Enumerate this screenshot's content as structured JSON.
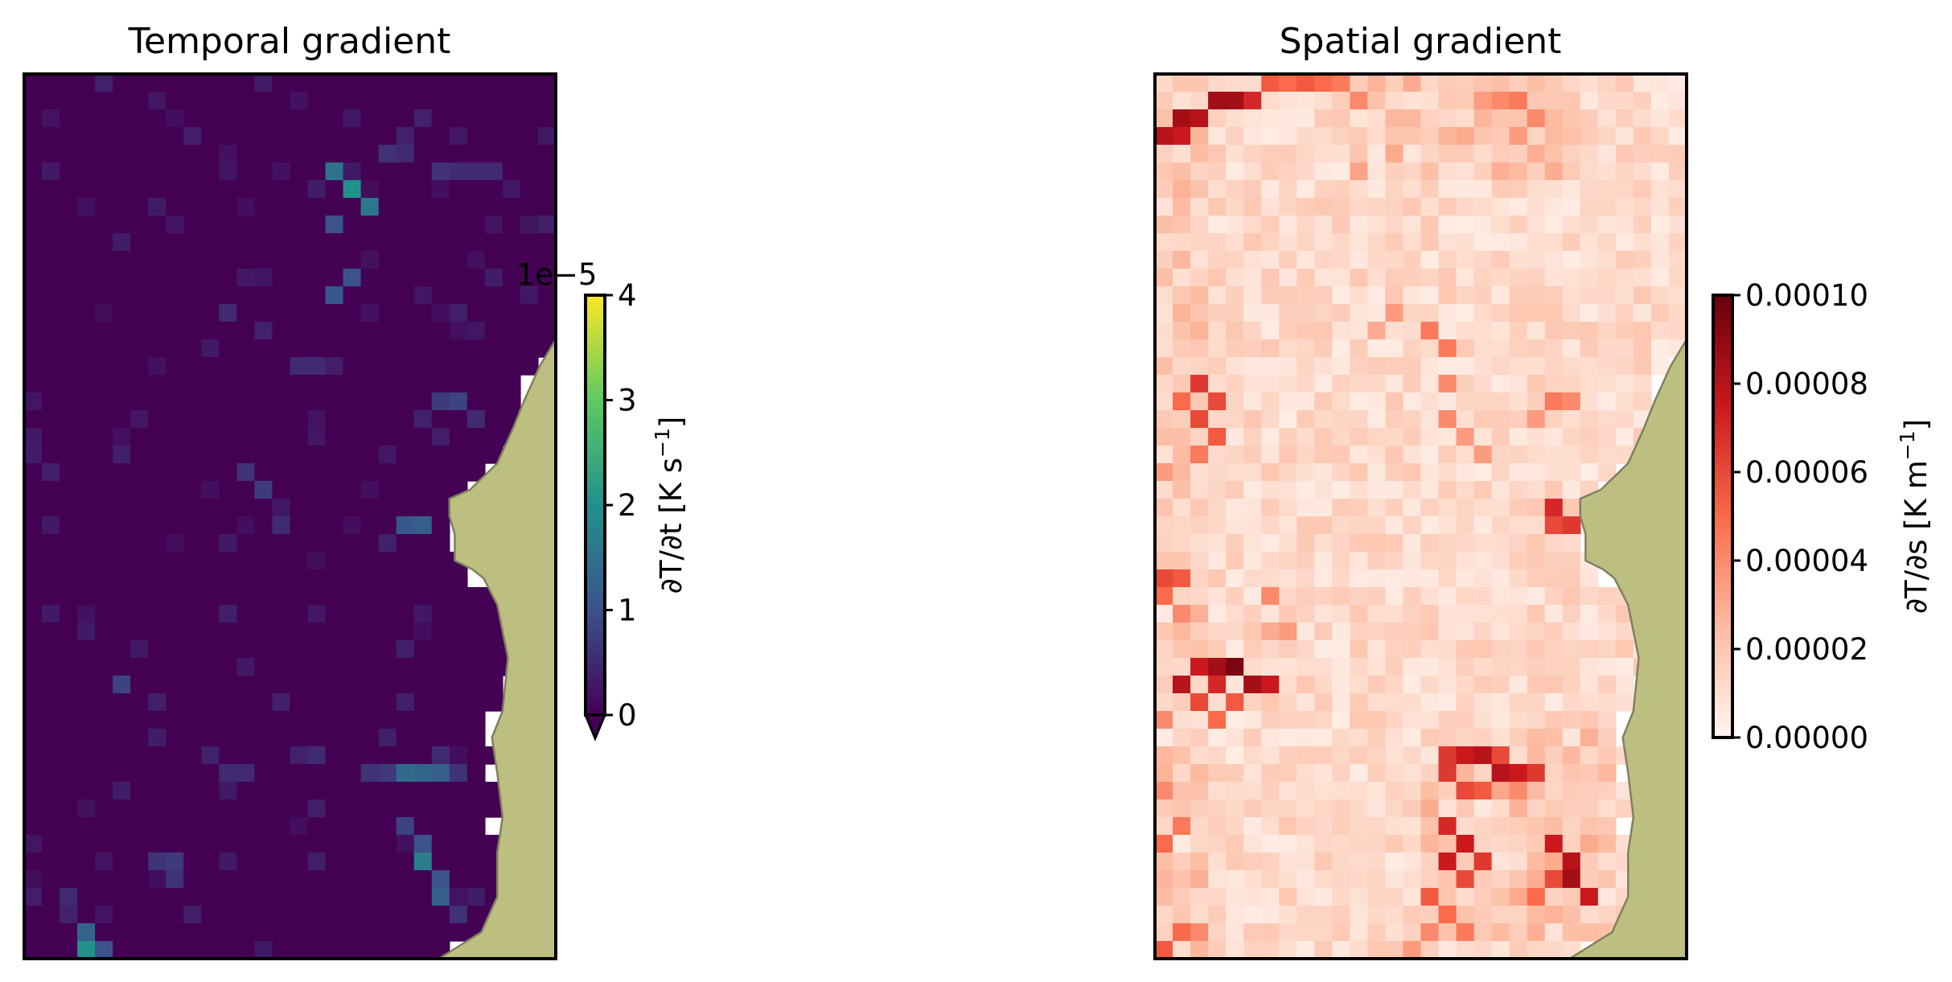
{
  "chart_data": [
    {
      "type": "heatmap",
      "title": "Temporal gradient",
      "colormap": "viridis",
      "colorbar": {
        "label": "∂T/∂t [K s⁻¹]",
        "label_parts": {
          "pre": "∂T/∂t [K s",
          "sup": "−1",
          "post": "]"
        },
        "ticks": [
          "0",
          "1",
          "2",
          "3",
          "4"
        ],
        "tick_values": [
          0,
          1,
          2,
          3,
          4
        ],
        "offset_text": "1e−5",
        "range": [
          0,
          4
        ],
        "extend": "min"
      },
      "grid": {
        "cols": 30,
        "rows": 50
      },
      "land_color": "#bdbf80",
      "land_edge_color": "#808060"
    },
    {
      "type": "heatmap",
      "title": "Spatial gradient",
      "colormap": "Reds",
      "colorbar": {
        "label": "∂T/∂s [K m⁻¹]",
        "label_parts": {
          "pre": "∂T/∂s [K m",
          "sup": "−1",
          "post": "]"
        },
        "ticks": [
          "0.00000",
          "0.00002",
          "0.00004",
          "0.00006",
          "0.00008",
          "0.00010"
        ],
        "tick_values": [
          0,
          2e-05,
          4e-05,
          6e-05,
          8e-05,
          0.0001
        ],
        "range": [
          0,
          0.0001
        ],
        "extend": "neither"
      },
      "grid": {
        "cols": 30,
        "rows": 50
      },
      "land_color": "#bdbf80",
      "land_edge_color": "#808060"
    }
  ]
}
